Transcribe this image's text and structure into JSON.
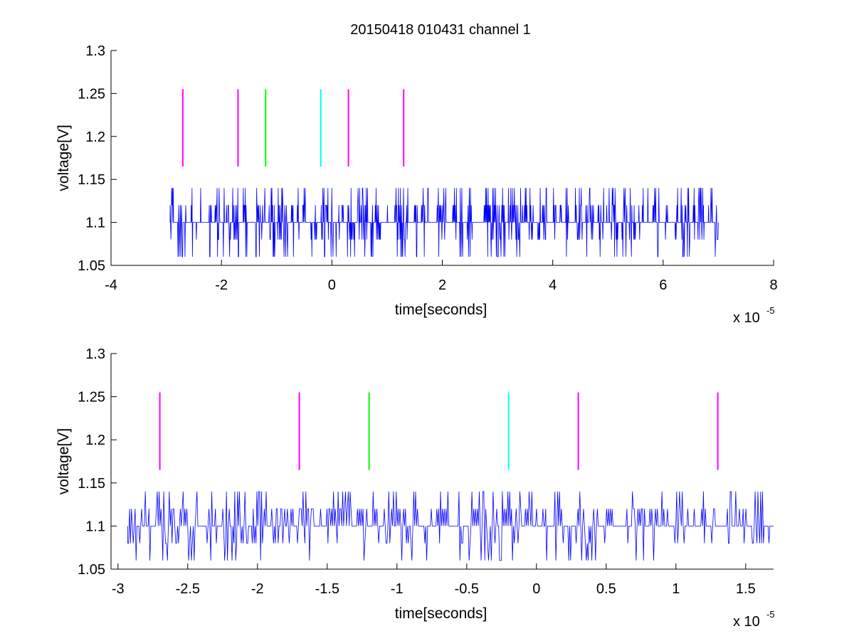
{
  "figure": {
    "title": "20150418 010431 channel 1"
  },
  "chart_data": [
    {
      "type": "line",
      "title": "20150418 010431 channel 1",
      "xlabel": "time[seconds]",
      "ylabel": "voltage[V]",
      "x_multiplier": "x 10",
      "x_multiplier_exp": "-5",
      "xlim": [
        -4,
        8
      ],
      "ylim": [
        1.05,
        1.3
      ],
      "xticks": [
        -4,
        -2,
        0,
        2,
        4,
        6,
        8
      ],
      "yticks": [
        1.05,
        1.1,
        1.15,
        1.2,
        1.25,
        1.3
      ],
      "ytick_labels": [
        "1.05",
        "1.1",
        "1.15",
        "1.2",
        "1.25",
        "1.3"
      ],
      "grid": false,
      "signal": {
        "color": "#0000ff",
        "x_range": [
          -2.93,
          7.0
        ],
        "levels": [
          1.06,
          1.08,
          1.1,
          1.12,
          1.14
        ],
        "baseline": 1.1,
        "description_levels_only": true
      },
      "markers": [
        {
          "x": -2.7,
          "y0": 1.165,
          "y1": 1.255,
          "color": "#ff00ff"
        },
        {
          "x": -1.7,
          "y0": 1.165,
          "y1": 1.255,
          "color": "#ff00ff"
        },
        {
          "x": -1.2,
          "y0": 1.165,
          "y1": 1.255,
          "color": "#00ff00"
        },
        {
          "x": -0.2,
          "y0": 1.165,
          "y1": 1.255,
          "color": "#00ffff"
        },
        {
          "x": 0.3,
          "y0": 1.165,
          "y1": 1.255,
          "color": "#ff00ff"
        },
        {
          "x": 1.3,
          "y0": 1.165,
          "y1": 1.255,
          "color": "#ff00ff"
        }
      ]
    },
    {
      "type": "line",
      "title": "",
      "xlabel": "time[seconds]",
      "ylabel": "voltage[V]",
      "x_multiplier": "x 10",
      "x_multiplier_exp": "-5",
      "xlim": [
        -3.05,
        1.7
      ],
      "ylim": [
        1.05,
        1.3
      ],
      "xticks": [
        -3,
        -2.5,
        -2,
        -1.5,
        -1,
        -0.5,
        0,
        0.5,
        1,
        1.5
      ],
      "xtick_labels": [
        "-3",
        "-2.5",
        "-2",
        "-1.5",
        "-1",
        "-0.5",
        "0",
        "0.5",
        "1",
        "1.5"
      ],
      "yticks": [
        1.05,
        1.1,
        1.15,
        1.2,
        1.25,
        1.3
      ],
      "ytick_labels": [
        "1.05",
        "1.1",
        "1.15",
        "1.2",
        "1.25",
        "1.3"
      ],
      "grid": false,
      "signal": {
        "color": "#0000ff",
        "x_range": [
          -2.93,
          1.7
        ],
        "levels": [
          1.06,
          1.08,
          1.1,
          1.12,
          1.14
        ],
        "baseline": 1.1
      },
      "markers": [
        {
          "x": -2.7,
          "y0": 1.165,
          "y1": 1.255,
          "color": "#ff00ff"
        },
        {
          "x": -1.7,
          "y0": 1.165,
          "y1": 1.255,
          "color": "#ff00ff"
        },
        {
          "x": -1.2,
          "y0": 1.165,
          "y1": 1.255,
          "color": "#00ff00"
        },
        {
          "x": -0.2,
          "y0": 1.165,
          "y1": 1.255,
          "color": "#00ffff"
        },
        {
          "x": 0.3,
          "y0": 1.165,
          "y1": 1.255,
          "color": "#ff00ff"
        },
        {
          "x": 1.3,
          "y0": 1.165,
          "y1": 1.255,
          "color": "#ff00ff"
        }
      ]
    }
  ]
}
